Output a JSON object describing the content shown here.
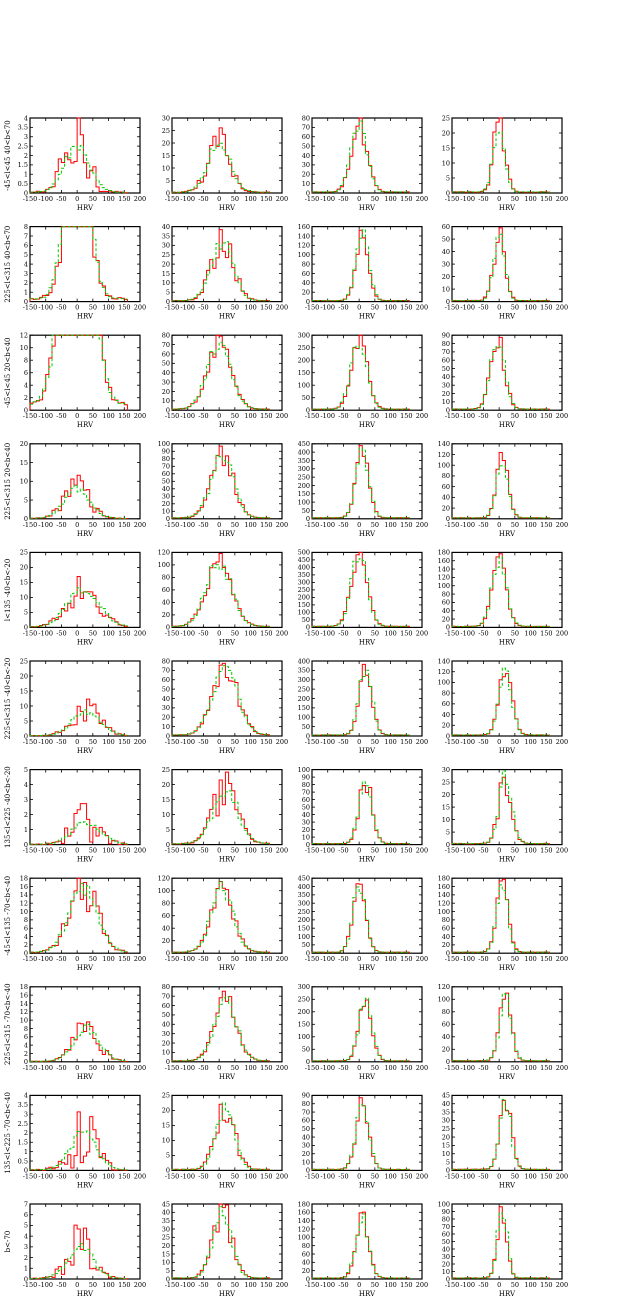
{
  "figure": {
    "xlabel": "HRV",
    "xticks": [
      "-150",
      "-100",
      "-50",
      "0",
      "50",
      "100",
      "150",
      "200"
    ],
    "xlim": [
      -150,
      200
    ],
    "series_colors": {
      "observed": "#ff0000",
      "model": "#00cc00"
    }
  },
  "rows": [
    {
      "label": "-45<l<45  40<b<70",
      "yticks": [
        [
          "0",
          "0.5",
          "1",
          "1.5",
          "2",
          "2.5",
          "3",
          "3.5",
          "4"
        ],
        [
          "0",
          "5",
          "10",
          "15",
          "20",
          "25",
          "30"
        ],
        [
          "0",
          "10",
          "20",
          "30",
          "40",
          "50",
          "60",
          "70",
          "80"
        ],
        [
          "0",
          "5",
          "10",
          "15",
          "20",
          "25"
        ]
      ],
      "ylim": [
        4,
        30,
        80,
        25
      ]
    },
    {
      "label": "225<l<315 40<b<70",
      "yticks": [
        [
          "0",
          "1",
          "2",
          "3",
          "4",
          "5",
          "6",
          "7",
          "8"
        ],
        [
          "0",
          "5",
          "10",
          "15",
          "20",
          "25",
          "30",
          "35",
          "40"
        ],
        [
          "0",
          "20",
          "40",
          "60",
          "80",
          "100",
          "120",
          "140",
          "160"
        ],
        [
          "0",
          "10",
          "20",
          "30",
          "40",
          "50",
          "60"
        ]
      ],
      "ylim": [
        8,
        40,
        160,
        60
      ]
    },
    {
      "label": "-45<l<45  20<b<40",
      "yticks": [
        [
          "0",
          "2",
          "4",
          "6",
          "8",
          "10",
          "12"
        ],
        [
          "0",
          "10",
          "20",
          "30",
          "40",
          "50",
          "60",
          "70",
          "80"
        ],
        [
          "0",
          "50",
          "100",
          "150",
          "200",
          "250",
          "300"
        ],
        [
          "0",
          "10",
          "20",
          "30",
          "40",
          "50",
          "60",
          "70",
          "80",
          "90"
        ]
      ],
      "ylim": [
        12,
        80,
        300,
        90
      ]
    },
    {
      "label": "225<l<315 20<b<40",
      "yticks": [
        [
          "0",
          "5",
          "10",
          "15",
          "20"
        ],
        [
          "0",
          "10",
          "20",
          "30",
          "40",
          "50",
          "60",
          "70",
          "80",
          "90",
          "100"
        ],
        [
          "0",
          "50",
          "100",
          "150",
          "200",
          "250",
          "300",
          "350",
          "400",
          "450"
        ],
        [
          "0",
          "20",
          "40",
          "60",
          "80",
          "100",
          "120",
          "140"
        ]
      ],
      "ylim": [
        20,
        100,
        450,
        140
      ]
    },
    {
      "label": "l<135 -40<b<-20",
      "yticks": [
        [
          "0",
          "5",
          "10",
          "15",
          "20",
          "25"
        ],
        [
          "0",
          "20",
          "40",
          "60",
          "80",
          "100",
          "120"
        ],
        [
          "0",
          "50",
          "100",
          "150",
          "200",
          "250",
          "300",
          "350",
          "400",
          "450",
          "500"
        ],
        [
          "0",
          "20",
          "40",
          "60",
          "80",
          "100",
          "120",
          "140",
          "160",
          "180"
        ]
      ],
      "ylim": [
        25,
        120,
        500,
        180
      ]
    },
    {
      "label": "225<l<315 -40<b<-20",
      "yticks": [
        [
          "0",
          "5",
          "10",
          "15",
          "20",
          "25"
        ],
        [
          "0",
          "10",
          "20",
          "30",
          "40",
          "50",
          "60",
          "70",
          "80"
        ],
        [
          "0",
          "50",
          "100",
          "150",
          "200",
          "250",
          "300",
          "350",
          "400"
        ],
        [
          "0",
          "20",
          "40",
          "60",
          "80",
          "100",
          "120",
          "140"
        ]
      ],
      "ylim": [
        25,
        80,
        400,
        140
      ]
    },
    {
      "label": "135<l<225 -40<b<-20",
      "yticks": [
        [
          "0",
          "1",
          "2",
          "3",
          "4",
          "5"
        ],
        [
          "0",
          "5",
          "10",
          "15",
          "20",
          "25"
        ],
        [
          "0",
          "10",
          "20",
          "30",
          "40",
          "50",
          "60",
          "70",
          "80",
          "90",
          "100"
        ],
        [
          "0",
          "5",
          "10",
          "15",
          "20",
          "25",
          "30"
        ]
      ],
      "ylim": [
        5,
        25,
        100,
        30
      ]
    },
    {
      "label": "-45<l<135 -70<b<-40",
      "yticks": [
        [
          "0",
          "2",
          "4",
          "6",
          "8",
          "10",
          "12",
          "14",
          "16",
          "18"
        ],
        [
          "0",
          "20",
          "40",
          "60",
          "80",
          "100",
          "120"
        ],
        [
          "0",
          "50",
          "100",
          "150",
          "200",
          "250",
          "300",
          "350",
          "400",
          "450"
        ],
        [
          "0",
          "20",
          "40",
          "60",
          "80",
          "100",
          "120",
          "140",
          "160",
          "180"
        ]
      ],
      "ylim": [
        18,
        120,
        450,
        180
      ]
    },
    {
      "label": "225<l<315 -70<b<-40",
      "yticks": [
        [
          "0",
          "2",
          "4",
          "6",
          "8",
          "10",
          "12",
          "14",
          "16",
          "18"
        ],
        [
          "0",
          "10",
          "20",
          "30",
          "40",
          "50",
          "60",
          "70",
          "80"
        ],
        [
          "0",
          "50",
          "100",
          "150",
          "200",
          "250",
          "300"
        ],
        [
          "0",
          "20",
          "40",
          "60",
          "80",
          "100",
          "120"
        ]
      ],
      "ylim": [
        18,
        80,
        300,
        120
      ]
    },
    {
      "label": "135<l<225 -70<b<-40",
      "yticks": [
        [
          "0",
          "0.5",
          "1",
          "1.5",
          "2",
          "2.5",
          "3",
          "3.5",
          "4"
        ],
        [
          "0",
          "5",
          "10",
          "15",
          "20",
          "25"
        ],
        [
          "0",
          "10",
          "20",
          "30",
          "40",
          "50",
          "60",
          "70",
          "80",
          "90"
        ],
        [
          "0",
          "5",
          "10",
          "15",
          "20",
          "25",
          "30",
          "35",
          "40",
          "45"
        ]
      ],
      "ylim": [
        4,
        25,
        90,
        45
      ]
    },
    {
      "label": "b<-70",
      "yticks": [
        [
          "0",
          "1",
          "2",
          "3",
          "4",
          "5",
          "6",
          "7"
        ],
        [
          "0",
          "5",
          "10",
          "15",
          "20",
          "25",
          "30",
          "35",
          "40",
          "45"
        ],
        [
          "0",
          "20",
          "40",
          "60",
          "80",
          "100",
          "120",
          "140",
          "160",
          "180"
        ],
        [
          "0",
          "10",
          "20",
          "30",
          "40",
          "50",
          "60",
          "70",
          "80",
          "90",
          "100"
        ]
      ],
      "ylim": [
        7,
        45,
        180,
        100
      ]
    }
  ],
  "chart_data": {
    "type": "histogram-grid",
    "description_of_panels": "11 rows x 4 columns of HRV histograms; red = observed, green dashed = model",
    "xlabel": "HRV",
    "xlim": [
      -150,
      200
    ],
    "columns": [
      {
        "center": [
          0,
          0,
          0,
          0,
          20,
          30,
          30,
          20,
          30,
          20,
          10
        ],
        "width": [
          40,
          35,
          40,
          40,
          50,
          45,
          45,
          45,
          40,
          40,
          40
        ],
        "peak": [
          2.5,
          20,
          65,
          8,
          13,
          8,
          1.5,
          15,
          8,
          2,
          3
        ]
      },
      {
        "center": [
          0,
          10,
          0,
          10,
          0,
          20,
          20,
          10,
          20,
          20,
          10
        ],
        "width": [
          35,
          35,
          38,
          35,
          40,
          40,
          40,
          35,
          35,
          30,
          30
        ],
        "peak": [
          20,
          31,
          68,
          85,
          105,
          70,
          18,
          103,
          65,
          20,
          40
        ]
      },
      {
        "center": [
          0,
          10,
          0,
          10,
          0,
          20,
          20,
          0,
          20,
          10,
          10
        ],
        "width": [
          25,
          20,
          25,
          20,
          25,
          20,
          20,
          20,
          20,
          20,
          20
        ],
        "peak": [
          72,
          140,
          280,
          410,
          480,
          350,
          85,
          390,
          250,
          80,
          150
        ]
      },
      {
        "center": [
          0,
          0,
          -5,
          10,
          0,
          20,
          20,
          10,
          20,
          20,
          10
        ],
        "width": [
          18,
          18,
          22,
          18,
          22,
          20,
          20,
          18,
          18,
          18,
          15
        ],
        "peak": [
          23,
          52,
          85,
          115,
          165,
          125,
          27,
          165,
          110,
          40,
          92
        ]
      }
    ]
  }
}
